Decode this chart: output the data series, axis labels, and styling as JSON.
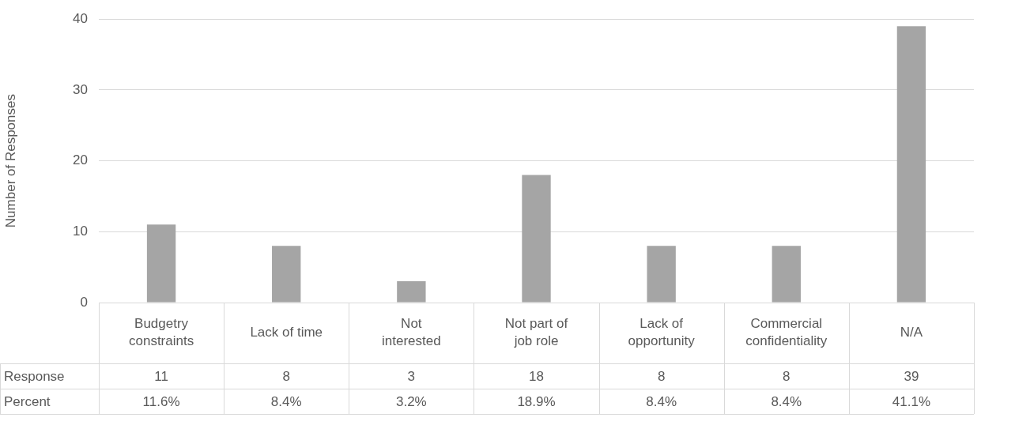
{
  "chart_data": {
    "type": "bar",
    "ylabel": "Number of Responses",
    "categories": [
      "Budgetry constraints",
      "Lack of time",
      "Not interested",
      "Not part of job role",
      "Lack of opportunity",
      "Commercial confidentiality",
      "N/A"
    ],
    "series": [
      {
        "name": "Response",
        "color": "#a5a5a5",
        "values": [
          11,
          8,
          3,
          18,
          8,
          8,
          39
        ]
      }
    ],
    "ylim": [
      0,
      40
    ],
    "yticks": [
      0,
      10,
      20,
      30,
      40
    ],
    "grid": "y",
    "data_labels": true,
    "annotations": [
      "Percent",
      "11.6%",
      "8.4%",
      "3.2%",
      "18.9%",
      "8.4%",
      "8.4%",
      "41.1%"
    ]
  }
}
